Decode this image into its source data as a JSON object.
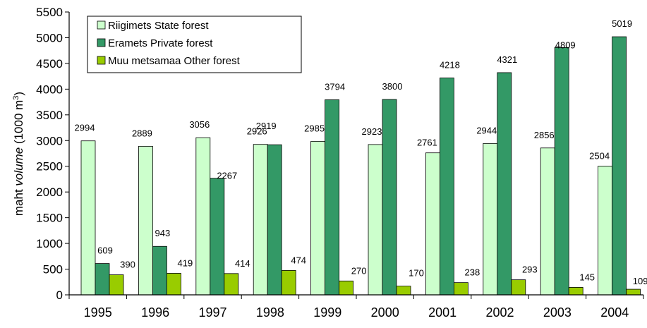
{
  "chart_data": {
    "type": "bar",
    "categories": [
      "1995",
      "1996",
      "1997",
      "1998",
      "1999",
      "2000",
      "2001",
      "2002",
      "2003",
      "2004"
    ],
    "series": [
      {
        "name": "Riigimets  State forest",
        "color": "#ccffcc",
        "values": [
          2994,
          2889,
          3056,
          2926,
          2985,
          2923,
          2761,
          2944,
          2856,
          2504
        ]
      },
      {
        "name": "Eramets  Private forest",
        "color": "#339966",
        "values": [
          609,
          943,
          2267,
          2919,
          3794,
          3800,
          4218,
          4321,
          4809,
          5019
        ]
      },
      {
        "name": "Muu metsamaa Other forest",
        "color": "#99cc00",
        "values": [
          390,
          419,
          414,
          474,
          270,
          170,
          238,
          293,
          145,
          109
        ]
      }
    ],
    "ylabel_prefix": "maht  ",
    "ylabel_italic": "volume",
    "ylabel_unit_open": " (1000 m",
    "ylabel_unit_sup": "3",
    "ylabel_unit_close": ")",
    "ylim": [
      0,
      5500
    ],
    "yticks": [
      "0",
      "500",
      "1000",
      "1500",
      "2000",
      "2500",
      "3000",
      "3500",
      "4000",
      "4500",
      "5000",
      "5500"
    ],
    "grid": false,
    "legend_position": "top-left"
  }
}
